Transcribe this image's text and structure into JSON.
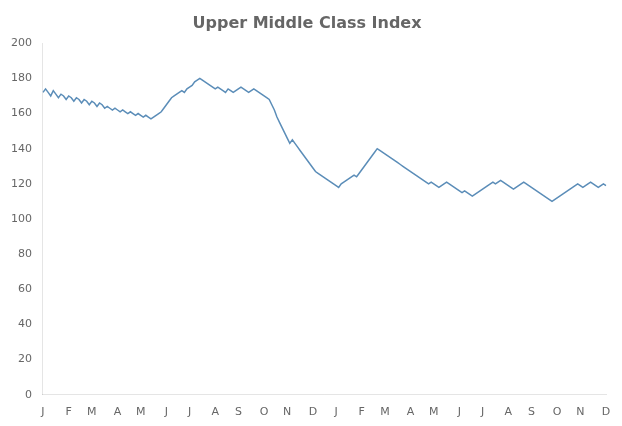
{
  "chart_data": {
    "type": "line",
    "title": "Upper Middle Class Index",
    "color": "#5b8db8",
    "ylim": [
      0,
      200
    ],
    "yticks": [
      0,
      20,
      40,
      60,
      80,
      100,
      120,
      140,
      160,
      180,
      200
    ],
    "grid": false,
    "categories": [
      "J",
      null,
      null,
      null,
      null,
      null,
      null,
      null,
      null,
      null,
      "F",
      null,
      null,
      null,
      null,
      null,
      null,
      null,
      null,
      "M",
      null,
      null,
      null,
      null,
      null,
      null,
      null,
      null,
      null,
      "A",
      null,
      null,
      null,
      null,
      null,
      null,
      null,
      null,
      "M",
      null,
      null,
      null,
      null,
      null,
      null,
      null,
      null,
      null,
      "J",
      null,
      null,
      null,
      null,
      null,
      null,
      null,
      null,
      "J",
      null,
      null,
      null,
      null,
      null,
      null,
      null,
      null,
      null,
      "A",
      null,
      null,
      null,
      null,
      null,
      null,
      null,
      null,
      "S",
      null,
      null,
      null,
      null,
      null,
      null,
      null,
      null,
      null,
      "O",
      null,
      null,
      null,
      null,
      null,
      null,
      null,
      null,
      "N",
      null,
      null,
      null,
      null,
      null,
      null,
      null,
      null,
      null,
      "D",
      null,
      null,
      null,
      null,
      null,
      null,
      null,
      null,
      "J",
      null,
      null,
      null,
      null,
      null,
      null,
      null,
      null,
      null,
      "F",
      null,
      null,
      null,
      null,
      null,
      null,
      null,
      null,
      "M",
      null,
      null,
      null,
      null,
      null,
      null,
      null,
      null,
      null,
      "A",
      null,
      null,
      null,
      null,
      null,
      null,
      null,
      null,
      "M",
      null,
      null,
      null,
      null,
      null,
      null,
      null,
      null,
      null,
      "J",
      null,
      null,
      null,
      null,
      null,
      null,
      null,
      null,
      "J",
      null,
      null,
      null,
      null,
      null,
      null,
      null,
      null,
      null,
      "A",
      null,
      null,
      null,
      null,
      null,
      null,
      null,
      null,
      "S",
      null,
      null,
      null,
      null,
      null,
      null,
      null,
      null,
      null,
      "O",
      null,
      null,
      null,
      null,
      null,
      null,
      null,
      null,
      "N",
      null,
      null,
      null,
      null,
      null,
      null,
      null,
      null,
      null,
      "D"
    ],
    "values": [
      172,
      174,
      172,
      170,
      173,
      171,
      169,
      171,
      170,
      168,
      170,
      169,
      167,
      169,
      168,
      166,
      168,
      167,
      165,
      167,
      166,
      164,
      166,
      165,
      163,
      164,
      163,
      162,
      163,
      162,
      161,
      162,
      161,
      160,
      161,
      160,
      159,
      160,
      159,
      158,
      159,
      158,
      157,
      158,
      159,
      160,
      161,
      163,
      165,
      167,
      169,
      170,
      171,
      172,
      173,
      172,
      174,
      175,
      176,
      178,
      179,
      180,
      179,
      178,
      177,
      176,
      175,
      174,
      175,
      174,
      173,
      172,
      174,
      173,
      172,
      173,
      174,
      175,
      174,
      173,
      172,
      173,
      174,
      173,
      172,
      171,
      170,
      169,
      168,
      165,
      162,
      158,
      155,
      152,
      149,
      146,
      143,
      145,
      143,
      141,
      139,
      137,
      135,
      133,
      131,
      129,
      127,
      126,
      125,
      124,
      123,
      122,
      121,
      120,
      119,
      118,
      120,
      121,
      122,
      123,
      124,
      125,
      124,
      126,
      128,
      130,
      132,
      134,
      136,
      138,
      140,
      139,
      138,
      137,
      136,
      135,
      134,
      133,
      132,
      131,
      130,
      129,
      128,
      127,
      126,
      125,
      124,
      123,
      122,
      121,
      120,
      121,
      120,
      119,
      118,
      119,
      120,
      121,
      120,
      119,
      118,
      117,
      116,
      115,
      116,
      115,
      114,
      113,
      114,
      115,
      116,
      117,
      118,
      119,
      120,
      121,
      120,
      121,
      122,
      121,
      120,
      119,
      118,
      117,
      118,
      119,
      120,
      121,
      120,
      119,
      118,
      117,
      116,
      115,
      114,
      113,
      112,
      111,
      110,
      111,
      112,
      113,
      114,
      115,
      116,
      117,
      118,
      119,
      120,
      119,
      118,
      119,
      120,
      121,
      120,
      119,
      118,
      119,
      120,
      119
    ]
  }
}
